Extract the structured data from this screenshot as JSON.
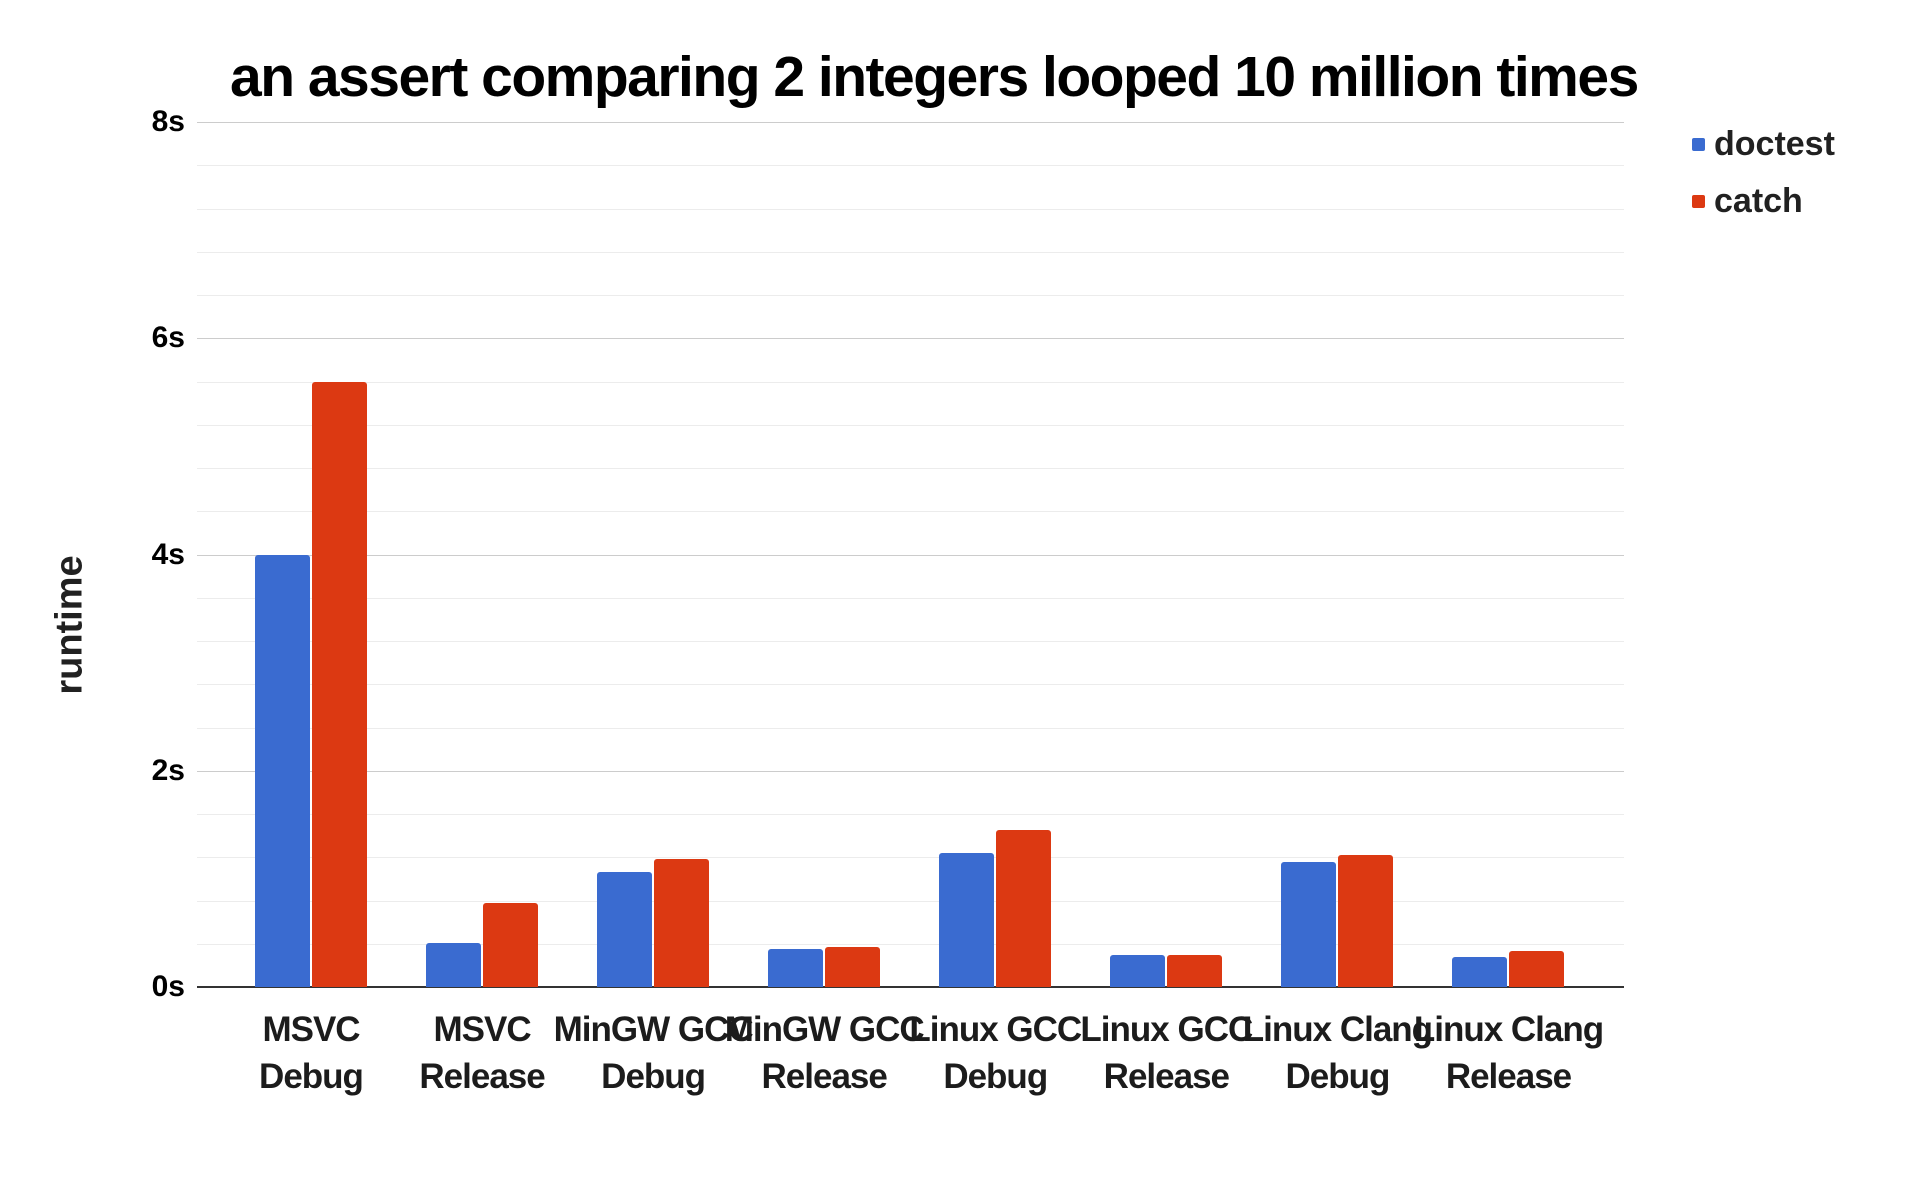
{
  "chart_data": {
    "type": "bar",
    "title": "an assert comparing 2 integers looped 10 million times",
    "xlabel": "",
    "ylabel": "runtime",
    "units": "s",
    "ylim": [
      0,
      8
    ],
    "ytick_values": [
      0,
      2,
      4,
      6,
      8
    ],
    "ytick_labels": [
      "0s",
      "2s",
      "4s",
      "6s",
      "8s"
    ],
    "minor_gridline_interval": 0.4,
    "grid": "on",
    "legend_position": "top-right",
    "categories": [
      {
        "line1": "MSVC",
        "line2": "Debug"
      },
      {
        "line1": "MSVC",
        "line2": "Release"
      },
      {
        "line1": "MinGW GCC",
        "line2": "Debug"
      },
      {
        "line1": "MinGW GCC",
        "line2": "Release"
      },
      {
        "line1": "Linux GCC",
        "line2": "Debug"
      },
      {
        "line1": "Linux GCC",
        "line2": "Release"
      },
      {
        "line1": "Linux Clang",
        "line2": "Debug"
      },
      {
        "line1": "Linux Clang",
        "line2": "Release"
      }
    ],
    "series": [
      {
        "name": "doctest",
        "color": "#3a6bd0",
        "values": [
          4.0,
          0.41,
          1.06,
          0.35,
          1.24,
          0.3,
          1.16,
          0.28
        ]
      },
      {
        "name": "catch",
        "color": "#dc3912",
        "values": [
          5.6,
          0.78,
          1.18,
          0.37,
          1.45,
          0.3,
          1.22,
          0.33
        ]
      }
    ],
    "gridline_major_color": "#cccccc",
    "gridline_minor_color": "#ececec",
    "baseline_color": "#333333"
  }
}
